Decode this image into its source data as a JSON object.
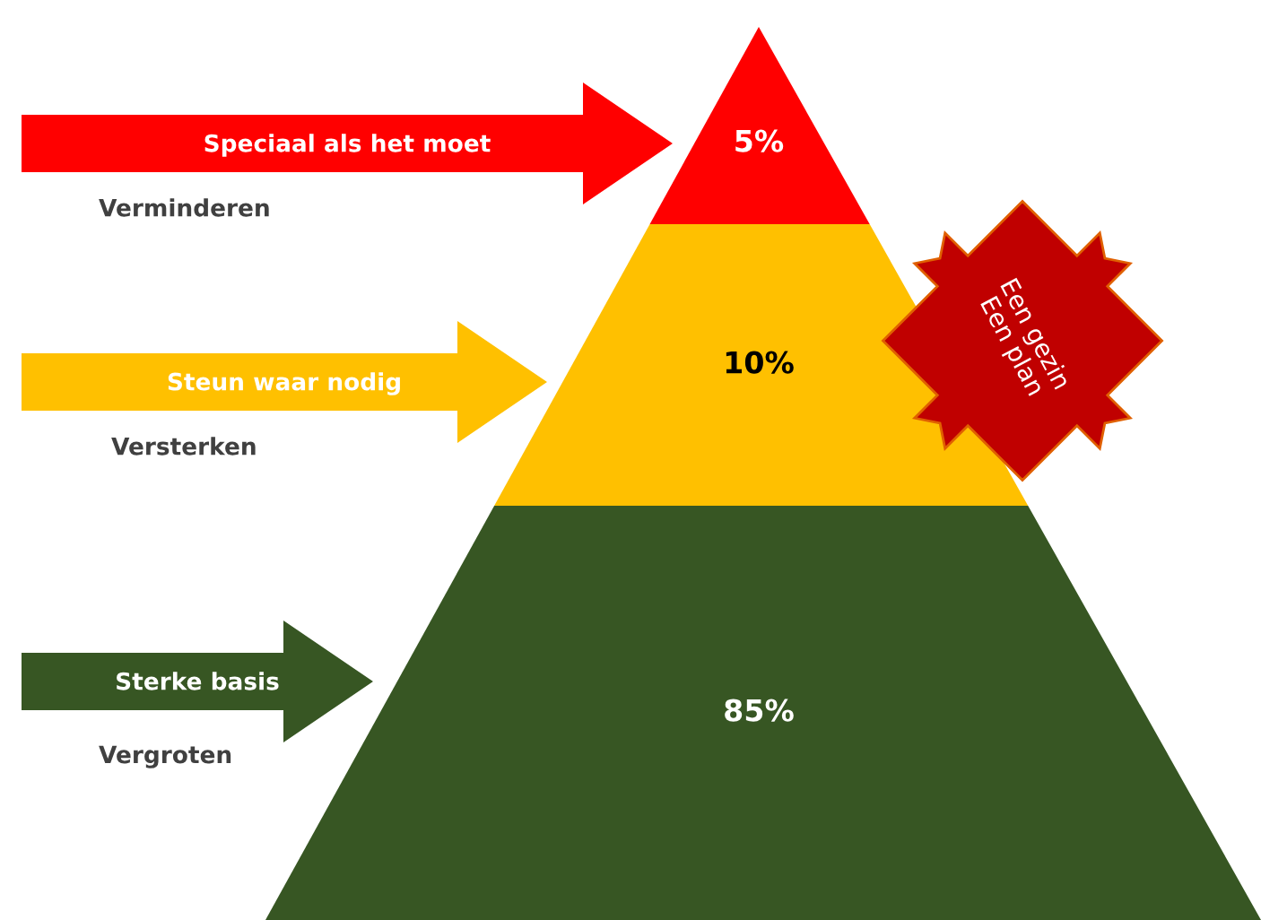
{
  "chart_data": {
    "type": "other",
    "categories": [
      "Speciaal als het moet",
      "Steun waar nodig",
      "Sterke basis"
    ],
    "values": [
      5,
      10,
      85
    ],
    "value_labels": [
      "5%",
      "10%",
      "85%"
    ],
    "colors": [
      "#ff0000",
      "#ffc000",
      "#375623"
    ],
    "annotations": [
      "Verminderen",
      "Versterken",
      "Vergroten",
      "Een gezin\nEen plan"
    ]
  }
}
